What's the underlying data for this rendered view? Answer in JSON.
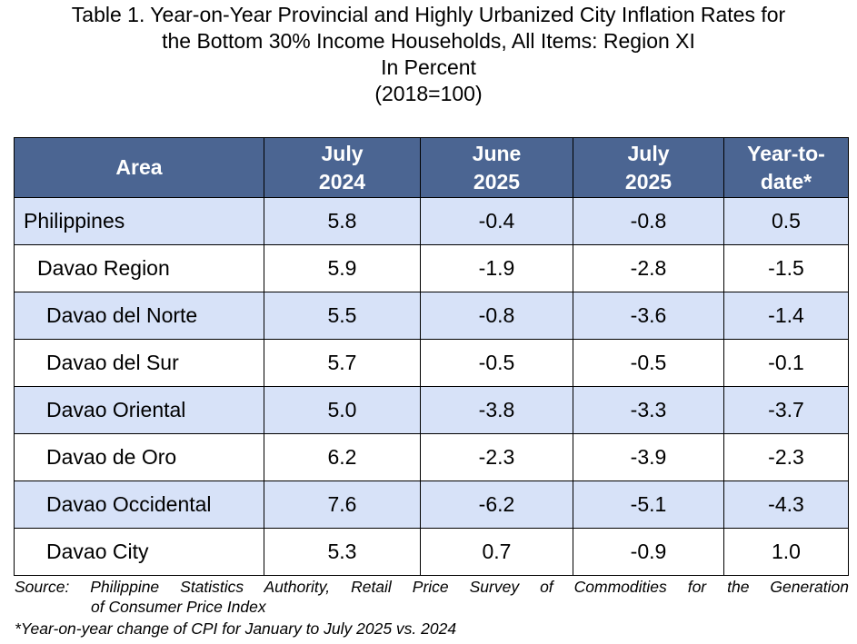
{
  "title": {
    "line1": "Table 1. Year-on-Year Provincial and Highly Urbanized City Inflation Rates for",
    "line2": "the Bottom 30% Income Households, All Items: Region XI",
    "line3": "In Percent",
    "line4": "(2018=100)"
  },
  "table": {
    "headers": [
      {
        "line1": "Area",
        "line2": ""
      },
      {
        "line1": "July",
        "line2": "2024"
      },
      {
        "line1": "June",
        "line2": "2025"
      },
      {
        "line1": "July",
        "line2": "2025"
      },
      {
        "line1": "Year-to-",
        "line2": "date*"
      }
    ],
    "rows": [
      {
        "area": "Philippines",
        "level": 0,
        "values": [
          "5.8",
          "-0.4",
          "-0.8",
          "0.5"
        ]
      },
      {
        "area": "Davao Region",
        "level": 1,
        "values": [
          "5.9",
          "-1.9",
          "-2.8",
          "-1.5"
        ]
      },
      {
        "area": "Davao del Norte",
        "level": 2,
        "values": [
          "5.5",
          "-0.8",
          "-3.6",
          "-1.4"
        ]
      },
      {
        "area": "Davao del Sur",
        "level": 2,
        "values": [
          "5.7",
          "-0.5",
          "-0.5",
          "-0.1"
        ]
      },
      {
        "area": "Davao Oriental",
        "level": 2,
        "values": [
          "5.0",
          "-3.8",
          "-3.3",
          "-3.7"
        ]
      },
      {
        "area": "Davao de Oro",
        "level": 2,
        "values": [
          "6.2",
          "-2.3",
          "-3.9",
          "-2.3"
        ]
      },
      {
        "area": "Davao Occidental",
        "level": 2,
        "values": [
          "7.6",
          "-6.2",
          "-5.1",
          "-4.3"
        ]
      },
      {
        "area": "Davao City",
        "level": 2,
        "values": [
          "5.3",
          "0.7",
          "-0.9",
          "1.0"
        ]
      }
    ]
  },
  "source": {
    "line1": "Source: Philippine Statistics Authority, Retail Price Survey of Commodities for the Generation",
    "line2": "of Consumer Price Index"
  },
  "footnote": "*Year-on-year change of CPI for January to July 2025 vs. 2024",
  "colors": {
    "header_bg": "#4b6592",
    "header_text": "#ffffff",
    "shaded_row": "#d7e2f8",
    "plain_row": "#ffffff",
    "border": "#000000"
  }
}
